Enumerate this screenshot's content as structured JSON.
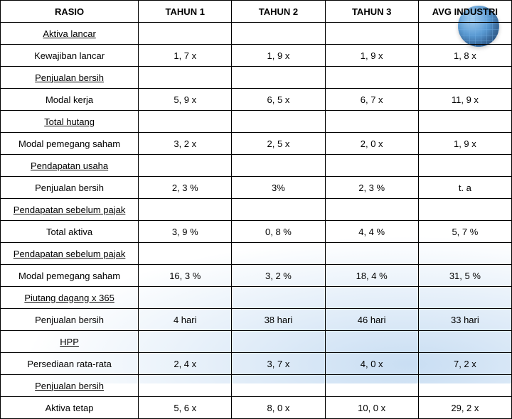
{
  "table": {
    "headers": {
      "rasio": "RASIO",
      "tahun1": "TAHUN 1",
      "tahun2": "TAHUN 2",
      "tahun3": "TAHUN 3",
      "avg": "AVG INDUSTRI"
    },
    "columns": {
      "rasio_width_pct": 27,
      "val_width_pct": 18.25
    },
    "cell_fontsize": 13,
    "border_color": "#000000",
    "background_color": "#ffffff",
    "rows": [
      {
        "label": "Aktiva lancar",
        "underlined": true,
        "values": [
          "",
          "",
          "",
          ""
        ]
      },
      {
        "label": "Kewajiban lancar",
        "underlined": false,
        "values": [
          "1, 7 x",
          "1, 9 x",
          "1, 9 x",
          "1, 8 x"
        ]
      },
      {
        "label": "Penjualan bersih",
        "underlined": true,
        "values": [
          "",
          "",
          "",
          ""
        ]
      },
      {
        "label": "Modal kerja",
        "underlined": false,
        "values": [
          "5, 9 x",
          "6, 5 x",
          "6, 7 x",
          "11, 9 x"
        ]
      },
      {
        "label": "Total hutang",
        "underlined": true,
        "values": [
          "",
          "",
          "",
          ""
        ]
      },
      {
        "label": "Modal pemegang saham",
        "underlined": false,
        "values": [
          "3, 2 x",
          "2, 5 x",
          "2, 0 x",
          "1, 9 x"
        ]
      },
      {
        "label": "Pendapatan usaha",
        "underlined": true,
        "values": [
          "",
          "",
          "",
          ""
        ]
      },
      {
        "label": "Penjualan bersih",
        "underlined": false,
        "values": [
          "2, 3 %",
          "3%",
          "2, 3 %",
          "t. a"
        ]
      },
      {
        "label": "Pendapatan sebelum pajak",
        "underlined": true,
        "values": [
          "",
          "",
          "",
          ""
        ]
      },
      {
        "label": "Total aktiva",
        "underlined": false,
        "values": [
          "3, 9 %",
          "0, 8 %",
          "4, 4 %",
          "5, 7 %"
        ]
      },
      {
        "label": "Pendapatan sebelum pajak",
        "underlined": true,
        "values": [
          "",
          "",
          "",
          ""
        ]
      },
      {
        "label": "Modal pemegang saham",
        "underlined": false,
        "values": [
          "16, 3 %",
          "3, 2 %",
          "18, 4 %",
          "31, 5 %"
        ]
      },
      {
        "label": "Piutang dagang x 365",
        "underlined": true,
        "values": [
          "",
          "",
          "",
          ""
        ]
      },
      {
        "label": "Penjualan bersih",
        "underlined": false,
        "values": [
          "4 hari",
          "38 hari",
          "46 hari",
          "33 hari"
        ]
      },
      {
        "label": "HPP",
        "underlined": true,
        "values": [
          "",
          "",
          "",
          ""
        ]
      },
      {
        "label": "Persediaan rata-rata",
        "underlined": false,
        "values": [
          "2, 4 x",
          "3, 7 x",
          "4, 0 x",
          "7, 2 x"
        ]
      },
      {
        "label": "Penjualan bersih",
        "underlined": true,
        "values": [
          "",
          "",
          "",
          ""
        ]
      },
      {
        "label": "Aktiva tetap",
        "underlined": false,
        "values": [
          "5, 6 x",
          "8, 0 x",
          "10, 0 x",
          "29, 2 x"
        ]
      }
    ]
  }
}
